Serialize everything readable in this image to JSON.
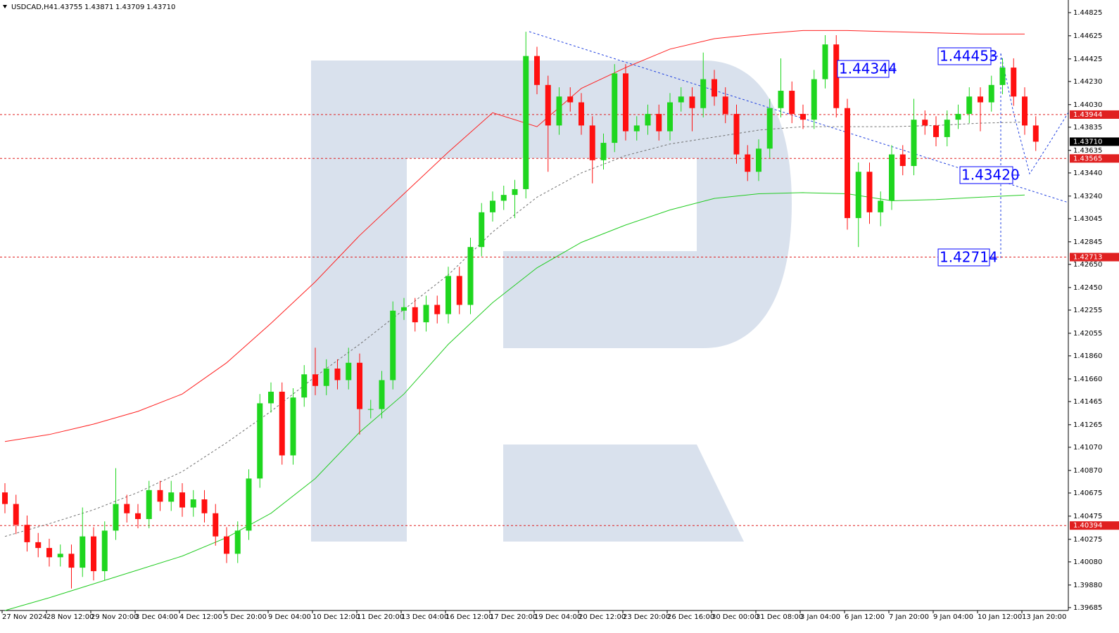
{
  "chart_data": {
    "type": "candlestick",
    "title": "USDCAD,H4",
    "header_values": [
      "1.43755",
      "1.43871",
      "1.43709",
      "1.43710"
    ],
    "categories": [
      "27 Nov 2024",
      null,
      null,
      null,
      "28 Nov 12:00",
      null,
      null,
      null,
      "29 Nov 20:00",
      null,
      null,
      null,
      "3 Dec 04:00",
      null,
      null,
      null,
      "4 Dec 12:00",
      null,
      null,
      null,
      "5 Dec 20:00",
      null,
      null,
      null,
      "9 Dec 04:00",
      null,
      null,
      null,
      "10 Dec 12:00",
      null,
      null,
      null,
      "11 Dec 20:00",
      null,
      null,
      null,
      "13 Dec 04:00",
      null,
      null,
      null,
      "16 Dec 12:00",
      null,
      null,
      null,
      "17 Dec 20:00",
      null,
      null,
      null,
      "19 Dec 04:00",
      null,
      null,
      null,
      "20 Dec 12:00",
      null,
      null,
      null,
      "23 Dec 20:00",
      null,
      null,
      null,
      "26 Dec 16:00",
      null,
      null,
      null,
      "30 Dec 00:00",
      null,
      null,
      null,
      "31 Dec 08:00",
      null,
      null,
      null,
      "3 Jan 04:00",
      null,
      null,
      null,
      "6 Jan 12:00",
      null,
      null,
      null,
      "7 Jan 20:00",
      null,
      null,
      null,
      "9 Jan 04:00",
      null,
      null,
      null,
      "10 Jan 12:00",
      null,
      null,
      null,
      "13 Jan 20:00",
      null
    ],
    "open": [
      1.4068,
      1.4058,
      1.404,
      1.4025,
      1.402,
      1.4012,
      1.4015,
      1.4003,
      1.403,
      1.4,
      1.4035,
      1.4058,
      1.405,
      1.4045,
      1.407,
      1.406,
      1.4068,
      1.4055,
      1.4062,
      1.405,
      1.403,
      1.4015,
      1.4035,
      1.408,
      1.4145,
      1.4155,
      1.41,
      1.415,
      1.417,
      1.416,
      1.4175,
      1.4165,
      1.418,
      1.414,
      1.414,
      1.4165,
      1.4225,
      1.4228,
      1.4215,
      1.423,
      1.4222,
      1.4255,
      1.423,
      1.428,
      1.431,
      1.432,
      1.4325,
      1.433,
      1.4445,
      1.442,
      1.4385,
      1.441,
      1.4405,
      1.4385,
      1.4355,
      1.437,
      1.443,
      1.438,
      1.4385,
      1.4395,
      1.438,
      1.4405,
      1.441,
      1.44,
      1.4425,
      1.441,
      1.4395,
      1.436,
      1.4345,
      1.4365,
      1.44,
      1.4415,
      1.4395,
      1.439,
      1.4425,
      1.4455,
      1.44,
      1.4305,
      1.4345,
      1.431,
      1.432,
      1.436,
      1.435,
      1.439,
      1.4385,
      1.4375,
      1.439,
      1.4395,
      1.441,
      1.4405,
      1.442,
      1.4435,
      1.441,
      1.4385
    ],
    "high": [
      1.4076,
      1.4066,
      1.4048,
      1.4033,
      1.4028,
      1.4023,
      1.4023,
      1.4055,
      1.4038,
      1.4043,
      1.4089,
      1.4066,
      1.4058,
      1.4078,
      1.4078,
      1.4078,
      1.4076,
      1.407,
      1.407,
      1.4058,
      1.4038,
      1.4043,
      1.4088,
      1.4153,
      1.4163,
      1.4163,
      1.4158,
      1.4178,
      1.4193,
      1.4183,
      1.4183,
      1.4193,
      1.4188,
      1.4148,
      1.4173,
      1.4233,
      1.4236,
      1.4236,
      1.4238,
      1.4238,
      1.4263,
      1.4263,
      1.4288,
      1.4318,
      1.4328,
      1.4333,
      1.4338,
      1.4466,
      1.4453,
      1.4428,
      1.4418,
      1.4418,
      1.4413,
      1.4393,
      1.4378,
      1.4438,
      1.4438,
      1.4393,
      1.4403,
      1.4403,
      1.4413,
      1.4418,
      1.4418,
      1.4448,
      1.4433,
      1.4418,
      1.4403,
      1.4368,
      1.4373,
      1.4408,
      1.4443,
      1.4423,
      1.4403,
      1.4433,
      1.4463,
      1.4463,
      1.4408,
      1.4353,
      1.4353,
      1.4328,
      1.4368,
      1.4368,
      1.4408,
      1.4398,
      1.4393,
      1.4398,
      1.4403,
      1.4418,
      1.4418,
      1.4428,
      1.4443,
      1.4443,
      1.4418,
      1.4393
    ],
    "low": [
      1.405,
      1.4032,
      1.4017,
      1.4012,
      1.4004,
      1.4004,
      1.3985,
      1.3995,
      1.3992,
      1.3992,
      1.4027,
      1.4042,
      1.4037,
      1.4037,
      1.4052,
      1.4052,
      1.4047,
      1.4047,
      1.4042,
      1.4022,
      1.4007,
      1.4007,
      1.4027,
      1.4072,
      1.4137,
      1.4092,
      1.4092,
      1.4142,
      1.4152,
      1.4152,
      1.4157,
      1.4157,
      1.4118,
      1.4132,
      1.4132,
      1.4157,
      1.4217,
      1.4207,
      1.4207,
      1.4214,
      1.4214,
      1.4222,
      1.4222,
      1.4272,
      1.4302,
      1.4312,
      1.4305,
      1.4322,
      1.4412,
      1.4345,
      1.4377,
      1.4397,
      1.4377,
      1.4335,
      1.4347,
      1.4362,
      1.4372,
      1.4372,
      1.4377,
      1.4372,
      1.4372,
      1.4397,
      1.438,
      1.4392,
      1.4402,
      1.4387,
      1.4352,
      1.4337,
      1.4337,
      1.4357,
      1.4392,
      1.4387,
      1.4382,
      1.4382,
      1.4417,
      1.4392,
      1.4295,
      1.428,
      1.43,
      1.4298,
      1.4312,
      1.4342,
      1.4342,
      1.4377,
      1.4367,
      1.4367,
      1.4382,
      1.4387,
      1.438,
      1.4397,
      1.4412,
      1.4402,
      1.4377,
      1.4363
    ],
    "close": [
      1.4058,
      1.404,
      1.4025,
      1.402,
      1.4012,
      1.4015,
      1.4003,
      1.403,
      1.4,
      1.4035,
      1.4058,
      1.405,
      1.4045,
      1.407,
      1.406,
      1.4068,
      1.4055,
      1.4062,
      1.405,
      1.403,
      1.4015,
      1.4035,
      1.408,
      1.4145,
      1.4155,
      1.41,
      1.415,
      1.417,
      1.416,
      1.4175,
      1.4165,
      1.418,
      1.414,
      1.414,
      1.4165,
      1.4225,
      1.4228,
      1.4215,
      1.423,
      1.4222,
      1.4255,
      1.423,
      1.428,
      1.431,
      1.432,
      1.4325,
      1.433,
      1.4445,
      1.442,
      1.4385,
      1.441,
      1.4405,
      1.4385,
      1.4355,
      1.437,
      1.443,
      1.438,
      1.4385,
      1.4395,
      1.438,
      1.4405,
      1.441,
      1.44,
      1.4425,
      1.441,
      1.4395,
      1.436,
      1.4345,
      1.4365,
      1.44,
      1.4415,
      1.4395,
      1.439,
      1.4425,
      1.4455,
      1.44,
      1.4305,
      1.4345,
      1.431,
      1.432,
      1.436,
      1.435,
      1.439,
      1.4385,
      1.4375,
      1.439,
      1.4395,
      1.441,
      1.4405,
      1.442,
      1.4435,
      1.441,
      1.4385,
      1.4371
    ],
    "up_color": "#1fd61f",
    "down_color": "#ff1010",
    "lines": [
      {
        "color": "#ff2020",
        "dash": false,
        "values": [
          1.4112,
          1.4118,
          1.4127,
          1.4138,
          1.4153,
          1.418,
          1.4214,
          1.425,
          1.429,
          1.4326,
          1.4362,
          1.4396,
          1.4384,
          1.4417,
          1.4435,
          1.4451,
          1.446,
          1.4464,
          1.4467,
          1.4467,
          1.4466,
          1.4465,
          1.4464,
          1.4464
        ]
      },
      {
        "color": "#22cc22",
        "dash": false,
        "values": [
          1.3966,
          1.3977,
          1.3989,
          1.4001,
          1.4013,
          1.4029,
          1.405,
          1.408,
          1.412,
          1.4153,
          1.4196,
          1.4232,
          1.4262,
          1.4284,
          1.4299,
          1.4312,
          1.4322,
          1.4326,
          1.4327,
          1.4326,
          1.432,
          1.4321,
          1.4323,
          1.4325
        ]
      },
      {
        "color": "#707070",
        "dash": true,
        "values": [
          1.403,
          1.4041,
          1.4053,
          1.4068,
          1.4086,
          1.4111,
          1.4138,
          1.4168,
          1.4196,
          1.4226,
          1.4256,
          1.4293,
          1.4323,
          1.4344,
          1.4359,
          1.4369,
          1.4375,
          1.4381,
          1.4384,
          1.4384,
          1.4384,
          1.4385,
          1.4387,
          1.4388
        ]
      }
    ],
    "price_levels": [
      1.43944,
      1.43565,
      1.42713,
      1.40394
    ],
    "level_color": "#e02020",
    "last_price": {
      "value": 1.4371,
      "label": "1.43710"
    },
    "annotations": [
      "1.44453",
      "1.44344",
      "1.43420",
      "1.42714"
    ],
    "ylim": [
      1.3966,
      1.44934
    ],
    "yticks": [
      1.44825,
      1.44625,
      1.44425,
      {
        "value": 1.4423,
        "label": "1.44230"
      },
      {
        "value": 1.4403,
        "label": "1.44030"
      },
      1.43835,
      1.43635,
      {
        "value": 1.4344,
        "label": "1.43440"
      },
      {
        "value": 1.4324,
        "label": "1.43240"
      },
      1.43045,
      1.42845,
      {
        "value": 1.4265,
        "label": "1.42650"
      },
      {
        "value": 1.4245,
        "label": "1.42450"
      },
      1.42255,
      1.42055,
      {
        "value": 1.4186,
        "label": "1.41860"
      },
      {
        "value": 1.4166,
        "label": "1.41660"
      },
      1.41465,
      1.41265,
      {
        "value": 1.4107,
        "label": "1.41070"
      },
      {
        "value": 1.4087,
        "label": "1.40870"
      },
      1.40675,
      1.40475,
      1.40275,
      {
        "value": 1.4008,
        "label": "1.40080"
      },
      {
        "value": 1.3988,
        "label": "1.39880"
      },
      1.39685
    ]
  }
}
